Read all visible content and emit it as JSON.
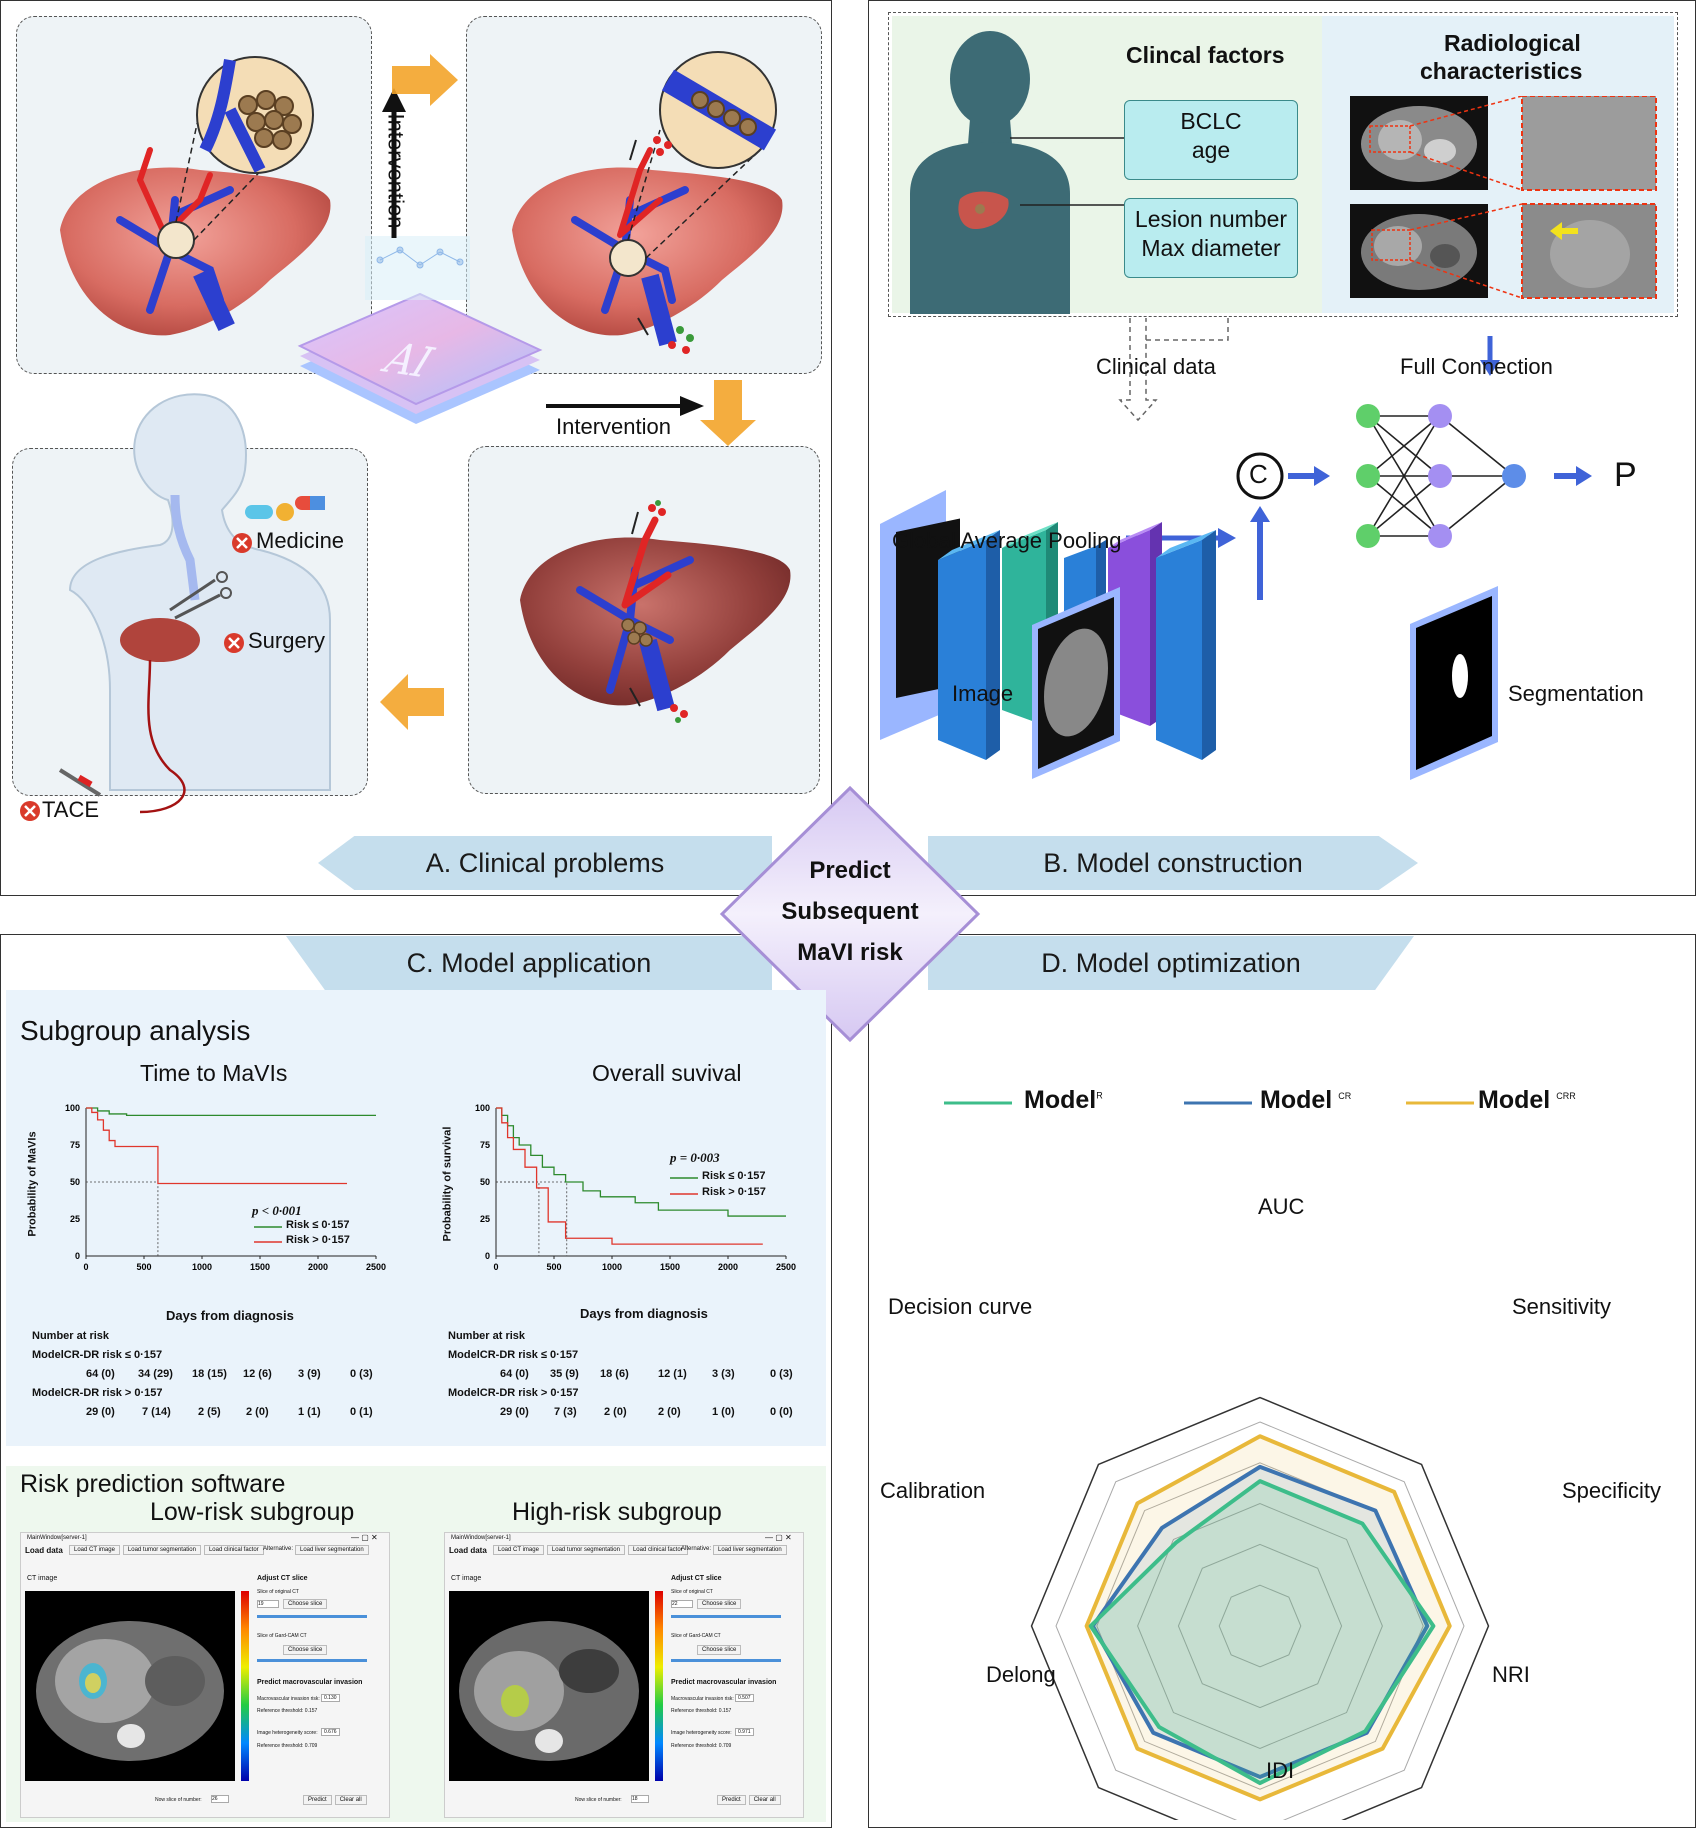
{
  "panel_a": {
    "band_label": "A. Clinical problems",
    "intervention_vertical": "Intervention",
    "intervention_horizontal": "Intervention",
    "ai_text": "AI",
    "treatments": [
      "Medicine",
      "Surgery",
      "TACE"
    ]
  },
  "center": {
    "lines": [
      "Predict",
      "Subsequent",
      "MaVI risk"
    ]
  },
  "panel_b": {
    "band_label": "B. Model construction",
    "clinical_factors_title": "Clincal factors",
    "factor_box_1": [
      "BCLC",
      "age"
    ],
    "factor_box_2": [
      "Lesion number",
      "Max diameter"
    ],
    "radiological_title": [
      "Radiological",
      "characteristics"
    ],
    "clinical_data": "Clinical data",
    "full_connection": "Full Connection",
    "concat_symbol": "C",
    "output": "P",
    "gap_label": "Global Average Pooling",
    "image_label": "Image",
    "segmentation_label": "Segmentation"
  },
  "panel_c": {
    "band_label": "C. Model application",
    "subgroup_title": "Subgroup analysis",
    "km": [
      {
        "title": "Time to MaVIs",
        "ylabel": "Probability of MaVIs",
        "xlabel": "Days from diagnosis",
        "yticks": [
          "100",
          "75",
          "50",
          "25",
          "0"
        ],
        "xticks": [
          "0",
          "500",
          "1000",
          "1500",
          "2000",
          "2500"
        ],
        "pvalue": "p < 0·001",
        "legend": [
          "Risk ≤ 0·157",
          "Risk > 0·157"
        ],
        "risk_header": "Number at risk",
        "row1_label": "ModelCR-DR risk ≤ 0·157",
        "row1": [
          "64 (0)",
          "34 (29)",
          "18 (15)",
          "12 (6)",
          "3 (9)",
          "0 (3)"
        ],
        "row2_label": "ModelCR-DR risk > 0·157",
        "row2": [
          "29  (0)",
          "7  (14)",
          "2 (5)",
          "2 (0)",
          "1 (1)",
          "0 (1)"
        ]
      },
      {
        "title": "Overall suvival",
        "ylabel": "Probability of survival",
        "xlabel": "Days from diagnosis",
        "yticks": [
          "100",
          "75",
          "50",
          "25",
          "0"
        ],
        "xticks": [
          "0",
          "500",
          "1000",
          "1500",
          "2000",
          "2500"
        ],
        "pvalue": "p = 0·003",
        "legend": [
          "Risk ≤ 0·157",
          "Risk > 0·157"
        ],
        "risk_header": "Number at risk",
        "row1_label": "ModelCR-DR risk ≤ 0·157",
        "row1": [
          "64 (0)",
          "35 (9)",
          "18 (6)",
          "12 (1)",
          "3 (3)",
          "0 (3)"
        ],
        "row2_label": "ModelCR-DR risk > 0·157",
        "row2": [
          "29 (0)",
          "7 (3)",
          "2 (0)",
          "2 (0)",
          "1 (0)",
          "0 (0)"
        ]
      }
    ],
    "software_title": "Risk prediction software",
    "software": [
      {
        "subgroup": "Low-risk subgroup",
        "window_title": "MainWindow[server-1]",
        "load_data": "Load data",
        "buttons": [
          "Load CT image",
          "Load tumor segmentation",
          "Load clinical factor"
        ],
        "alternative": "Alternative:",
        "liver_btn": "Load liver segmentation",
        "ct_label": "CT image",
        "adjust_title": "Adjust CT slice",
        "slice_orig": "Slice of original CT",
        "slice_val": "19",
        "choose": "Choose slice",
        "slice_gradcam": "Slice of Gard-CAM CT",
        "predict_title": "Predict macrovascular invasion",
        "mavi_risk_label": "Macrovascular invasion risk:",
        "mavi_risk": "0.130",
        "ref1": "Reference threshold: 0.157",
        "hetero_label": "Image heterogeneity score:",
        "hetero": "0.676",
        "ref2": "Reference threshold: 0.709",
        "now_slice": "Now slice of number:",
        "now_val": "26",
        "predict_btn": "Predict",
        "clear_btn": "Clear all"
      },
      {
        "subgroup": "High-risk subgroup",
        "window_title": "MainWindow[server-1]",
        "load_data": "Load data",
        "buttons": [
          "Load CT image",
          "Load tumor segmentation",
          "Load clinical factor"
        ],
        "alternative": "Alternative:",
        "liver_btn": "Load liver segmentation",
        "ct_label": "CT image",
        "adjust_title": "Adjust CT slice",
        "slice_orig": "Slice of original CT",
        "slice_val": "22",
        "choose": "Choose slice",
        "slice_gradcam": "Slice of Gard-CAM CT",
        "predict_title": "Predict macrovascular invasion",
        "mavi_risk_label": "Macrovascular invasion risk:",
        "mavi_risk": "0.507",
        "ref1": "Reference threshold: 0.157",
        "hetero_label": "Image heterogeneity score:",
        "hetero": "0.971",
        "ref2": "Reference threshold: 0.709",
        "now_slice": "Now slice of number:",
        "now_val": "18",
        "predict_btn": "Predict",
        "clear_btn": "Clear all"
      }
    ]
  },
  "panel_d": {
    "band_label": "D. Model optimization",
    "legend": [
      {
        "name": "Model",
        "sup": "R",
        "color": "#3dbd8a"
      },
      {
        "name": "Model",
        "sup": "CR",
        "color": "#3d74b0"
      },
      {
        "name": "Model",
        "sup": "CRR",
        "color": "#e8b83a"
      }
    ]
  },
  "radar": {
    "axes": [
      "AUC",
      "Sensitivity",
      "Specificity",
      "NRI",
      "IDI",
      "Delong",
      "Calibration",
      "Decision curve"
    ],
    "series": [
      {
        "name": "ModelR",
        "color": "#3dbd8a",
        "fill": "rgba(61,189,138,0.18)",
        "values": [
          0.71,
          0.71,
          0.85,
          0.73,
          0.77,
          0.7,
          0.83,
          0.58
        ]
      },
      {
        "name": "ModelCR",
        "color": "#3d74b0",
        "fill": "rgba(61,116,176,0.12)",
        "values": [
          0.78,
          0.8,
          0.82,
          0.74,
          0.74,
          0.74,
          0.82,
          0.68
        ]
      },
      {
        "name": "ModelCRR",
        "color": "#e8b83a",
        "fill": "rgba(232,184,58,0.12)",
        "values": [
          0.93,
          0.93,
          0.93,
          0.85,
          0.85,
          0.85,
          0.85,
          0.85
        ]
      }
    ]
  },
  "colors": {
    "band": "#c5deed",
    "diamond": "#e9e1f6",
    "arrow_blue": "#3f63d8",
    "arrow_orange": "#f3a42a",
    "km_green": "#2d8a2d",
    "km_red": "#e0362c"
  }
}
